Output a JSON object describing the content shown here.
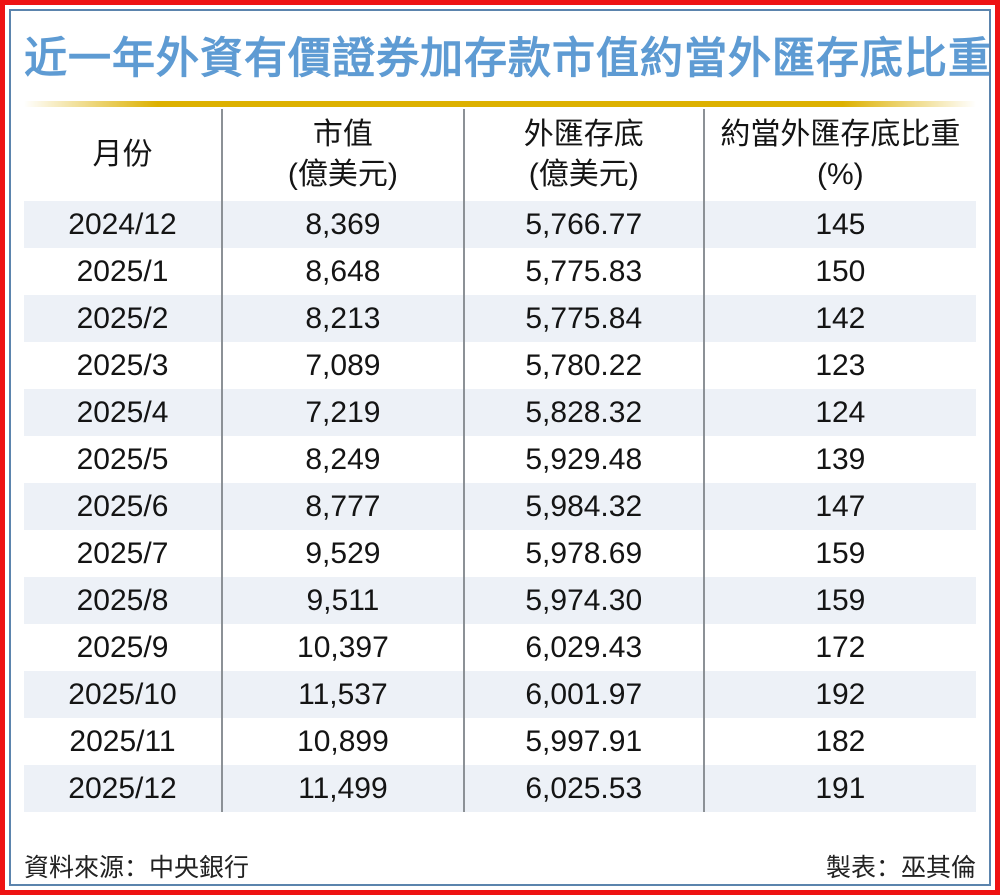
{
  "title": "近一年外資有價證券加存款市值約當外匯存底比重",
  "chart_data": {
    "type": "table",
    "title": "近一年外資有價證券加存款市值約當外匯存底比重",
    "columns": [
      {
        "label": "月份",
        "sub": ""
      },
      {
        "label": "市值",
        "sub": "(億美元)"
      },
      {
        "label": "外匯存底",
        "sub": "(億美元)"
      },
      {
        "label": "約當外匯存底比重",
        "sub": "(%)"
      }
    ],
    "rows": [
      [
        "2024/12",
        "8,369",
        "5,766.77",
        "145"
      ],
      [
        "2025/1",
        "8,648",
        "5,775.83",
        "150"
      ],
      [
        "2025/2",
        "8,213",
        "5,775.84",
        "142"
      ],
      [
        "2025/3",
        "7,089",
        "5,780.22",
        "123"
      ],
      [
        "2025/4",
        "7,219",
        "5,828.32",
        "124"
      ],
      [
        "2025/5",
        "8,249",
        "5,929.48",
        "139"
      ],
      [
        "2025/6",
        "8,777",
        "5,984.32",
        "147"
      ],
      [
        "2025/7",
        "9,529",
        "5,978.69",
        "159"
      ],
      [
        "2025/8",
        "9,511",
        "5,974.30",
        "159"
      ],
      [
        "2025/9",
        "10,397",
        "6,029.43",
        "172"
      ],
      [
        "2025/10",
        "11,537",
        "6,001.97",
        "192"
      ],
      [
        "2025/11",
        "10,899",
        "5,997.91",
        "182"
      ],
      [
        "2025/12",
        "11,499",
        "6,025.53",
        "191"
      ]
    ]
  },
  "footer": {
    "source": "資料來源：中央銀行",
    "credit": "製表：巫其倫"
  },
  "colors": {
    "title_blue": "#5e9bd3",
    "gold_line": "#ddb100",
    "outer_border_red": "#ee1313",
    "inner_border_blue": "#5b84ad",
    "row_stripe": "#edf1f7",
    "divider_gray": "#8c9196"
  }
}
